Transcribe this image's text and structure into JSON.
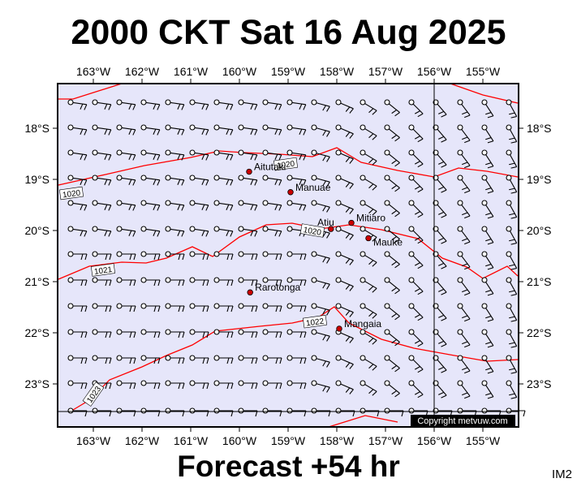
{
  "title": "2000 CKT Sat 16 Aug 2025",
  "forecast": "Forecast +54 hr",
  "corner_label": "IM2",
  "copyright": "Copyright metvuw.com",
  "colors": {
    "ocean": "#e6e6fa",
    "isobar": "#ff0000",
    "station": "#cc0000",
    "barb": "#000000"
  },
  "lon_labels": [
    "163°W",
    "162°W",
    "161°W",
    "160°W",
    "159°W",
    "158°W",
    "157°W",
    "156°W",
    "155°W"
  ],
  "lat_labels": [
    "18°S",
    "19°S",
    "20°S",
    "21°S",
    "22°S",
    "23°S"
  ],
  "stations": [
    {
      "name": "Aitutaki",
      "lon": -159.8,
      "lat": -18.85
    },
    {
      "name": "Manuae",
      "lon": -158.95,
      "lat": -19.25
    },
    {
      "name": "Mitiaro",
      "lon": -157.7,
      "lat": -19.85
    },
    {
      "name": "Atiu",
      "lon": -158.12,
      "lat": -19.97
    },
    {
      "name": "Mauke",
      "lon": -157.35,
      "lat": -20.15
    },
    {
      "name": "Rarotonga",
      "lon": -159.78,
      "lat": -21.21
    },
    {
      "name": "Mangaia",
      "lon": -157.95,
      "lat": -21.92
    }
  ],
  "isobars": [
    {
      "label": "1020",
      "lon": -159.05,
      "lat": -18.7
    },
    {
      "label": "1020",
      "lon": -163.45,
      "lat": -19.27
    },
    {
      "label": "1020",
      "lon": -158.5,
      "lat": -20.0
    },
    {
      "label": "1021",
      "lon": -162.8,
      "lat": -20.77
    },
    {
      "label": "1022",
      "lon": -158.45,
      "lat": -21.78
    },
    {
      "label": "1023",
      "lon": -163.0,
      "lat": -23.2
    }
  ]
}
